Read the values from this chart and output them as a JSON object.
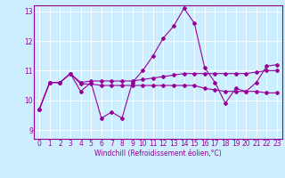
{
  "xlabel": "Windchill (Refroidissement éolien,°C)",
  "background_color": "#cceeff",
  "line_color": "#990099",
  "xlim": [
    -0.5,
    23.5
  ],
  "ylim": [
    8.7,
    13.2
  ],
  "yticks": [
    9,
    10,
    11,
    12,
    13
  ],
  "xticks": [
    0,
    1,
    2,
    3,
    4,
    5,
    6,
    7,
    8,
    9,
    10,
    11,
    12,
    13,
    14,
    15,
    16,
    17,
    18,
    19,
    20,
    21,
    22,
    23
  ],
  "line1_x": [
    0,
    1,
    2,
    3,
    4,
    5,
    6,
    7,
    8,
    9,
    10,
    11,
    12,
    13,
    14,
    15,
    16,
    17,
    18,
    19,
    20,
    21,
    22,
    23
  ],
  "line1_y": [
    9.7,
    10.6,
    10.6,
    10.9,
    10.3,
    10.6,
    9.4,
    9.6,
    9.4,
    10.6,
    11.0,
    11.5,
    12.1,
    12.5,
    13.1,
    12.6,
    11.1,
    10.6,
    9.9,
    10.4,
    10.3,
    10.6,
    11.15,
    11.2
  ],
  "line2_x": [
    0,
    1,
    2,
    3,
    4,
    5,
    6,
    7,
    8,
    9,
    10,
    11,
    12,
    13,
    14,
    15,
    16,
    17,
    18,
    19,
    20,
    21,
    22,
    23
  ],
  "line2_y": [
    9.7,
    10.6,
    10.6,
    10.9,
    10.6,
    10.65,
    10.65,
    10.65,
    10.65,
    10.65,
    10.7,
    10.75,
    10.8,
    10.85,
    10.9,
    10.9,
    10.9,
    10.9,
    10.9,
    10.9,
    10.9,
    10.95,
    11.0,
    11.0
  ],
  "line3_x": [
    0,
    1,
    2,
    3,
    4,
    5,
    6,
    7,
    8,
    9,
    10,
    11,
    12,
    13,
    14,
    15,
    16,
    17,
    18,
    19,
    20,
    21,
    22,
    23
  ],
  "line3_y": [
    9.7,
    10.6,
    10.6,
    10.9,
    10.55,
    10.55,
    10.5,
    10.5,
    10.5,
    10.5,
    10.5,
    10.5,
    10.5,
    10.5,
    10.5,
    10.5,
    10.4,
    10.35,
    10.3,
    10.3,
    10.3,
    10.3,
    10.25,
    10.25
  ],
  "tick_fontsize": 5.5,
  "xlabel_fontsize": 5.5,
  "grid_color": "#ffffff",
  "spine_color": "#990099"
}
